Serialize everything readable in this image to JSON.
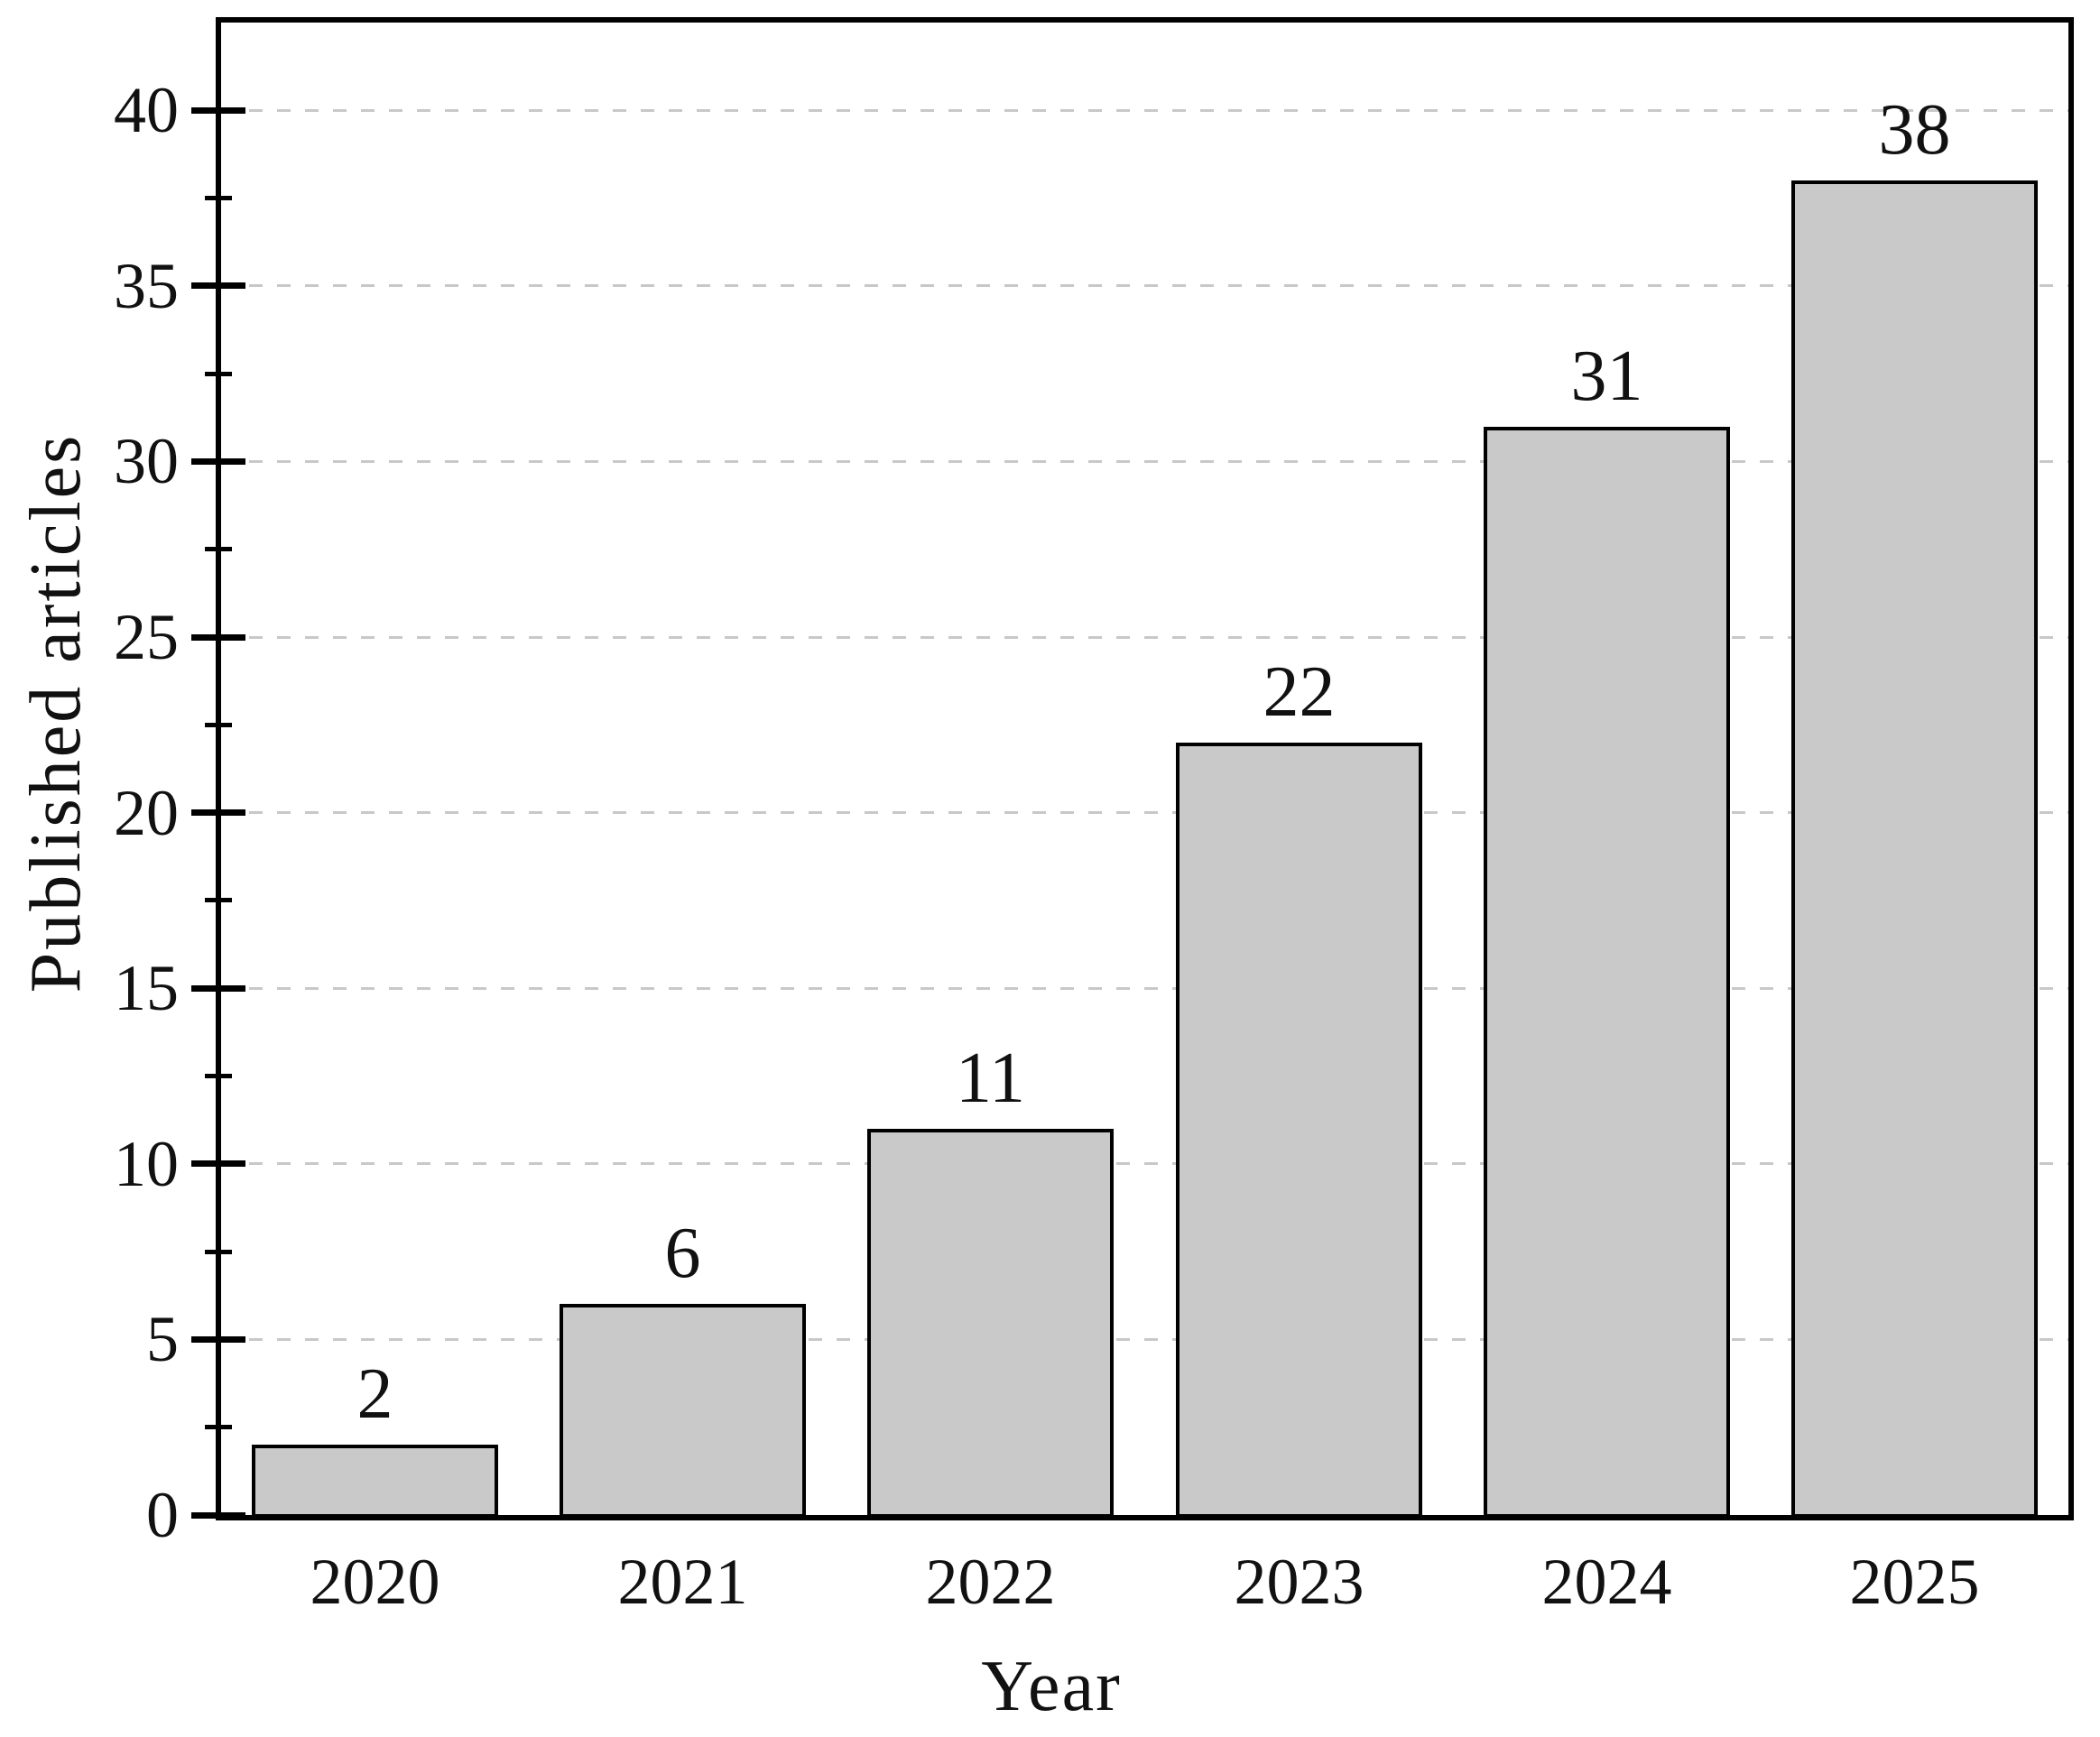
{
  "figure": {
    "background": "#ffffff"
  },
  "chart_data": {
    "type": "bar",
    "title": "",
    "xlabel": "Year",
    "ylabel": "Published articles",
    "categories": [
      "2020",
      "2021",
      "2022",
      "2023",
      "2024",
      "2025"
    ],
    "values": [
      2,
      6,
      11,
      22,
      31,
      38
    ],
    "bar_labels": [
      "2",
      "6",
      "11",
      "22",
      "31",
      "38"
    ],
    "ylim": [
      0,
      42.5
    ],
    "yticks_major": [
      0,
      5,
      10,
      15,
      20,
      25,
      30,
      35,
      40
    ],
    "ytick_labels": [
      "0",
      "5",
      "10",
      "15",
      "20",
      "25",
      "30",
      "35",
      "40"
    ],
    "yticks_minor": [
      2.5,
      7.5,
      12.5,
      17.5,
      22.5,
      27.5,
      32.5,
      37.5
    ],
    "grid": "horizontal dashed lines at major y ticks",
    "legend": "none",
    "bar_width_fraction": 0.8,
    "colors": {
      "bar_fill": "#c9c9c9",
      "bar_edge": "#000000",
      "grid_color": "#c8c8c8",
      "axis_color": "#000000",
      "text_color": "#111111",
      "background": "#ffffff"
    }
  }
}
